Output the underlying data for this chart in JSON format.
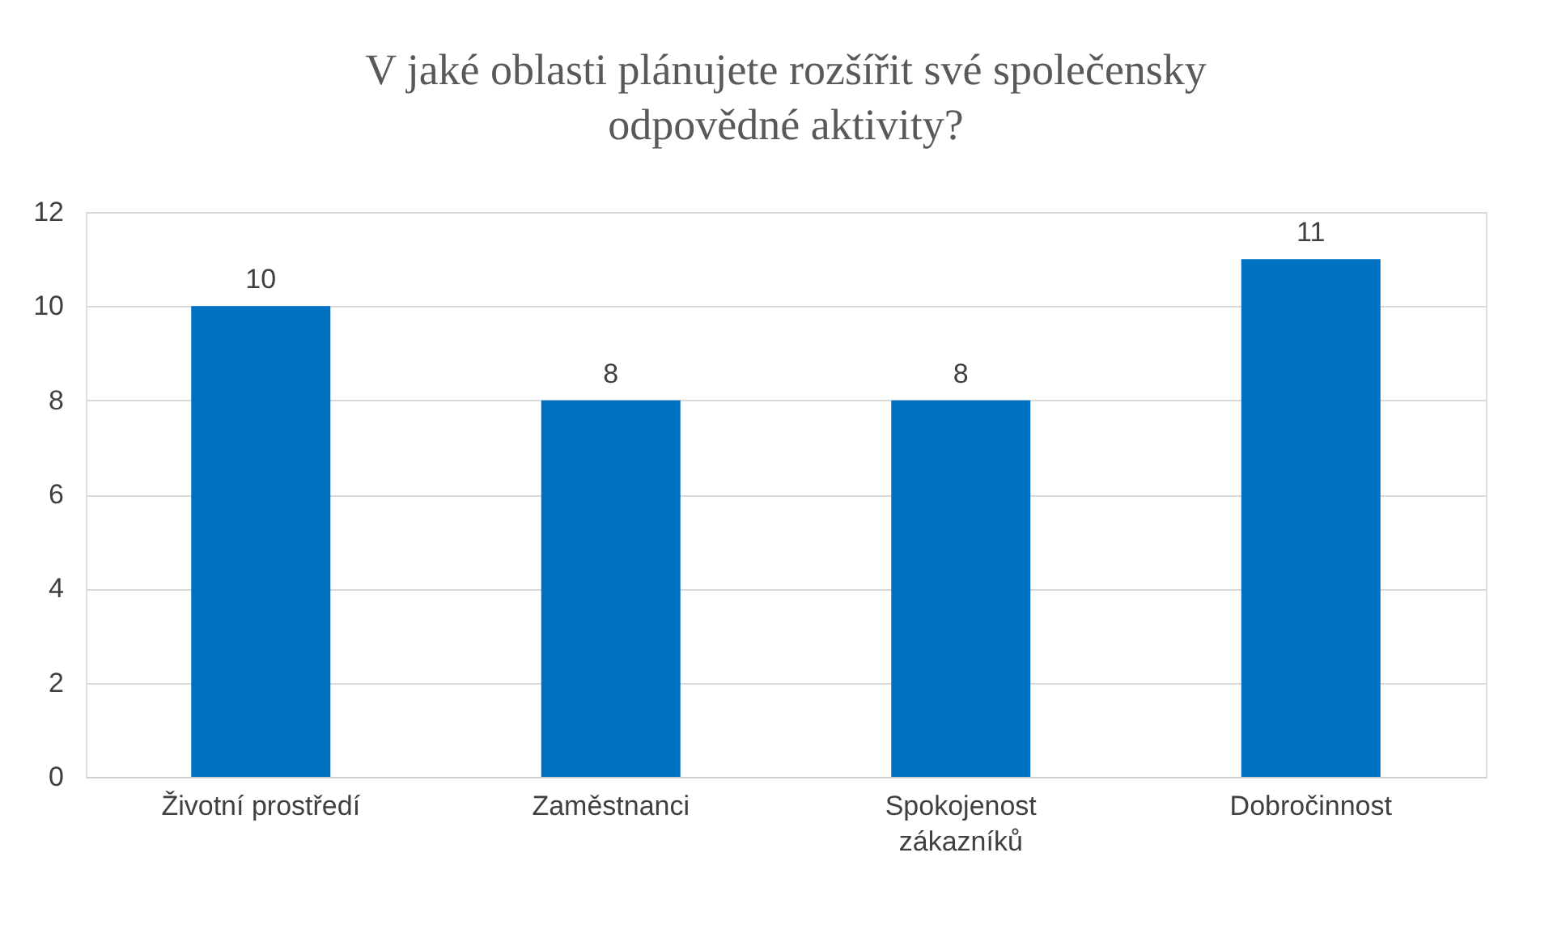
{
  "chart_data": {
    "type": "bar",
    "title": "V jaké oblasti plánujete rozšířit své společensky\nodpovědné aktivity?",
    "categories": [
      "Životní prostředí",
      "Zaměstnanci",
      "Spokojenost\nzákazníků",
      "Dobročinnost"
    ],
    "values": [
      10,
      8,
      8,
      11
    ],
    "color": "#0070c0",
    "ylim": [
      0,
      12
    ],
    "yticks": [
      0,
      2,
      4,
      6,
      8,
      10,
      12
    ],
    "grid": "y",
    "data_labels": true
  }
}
